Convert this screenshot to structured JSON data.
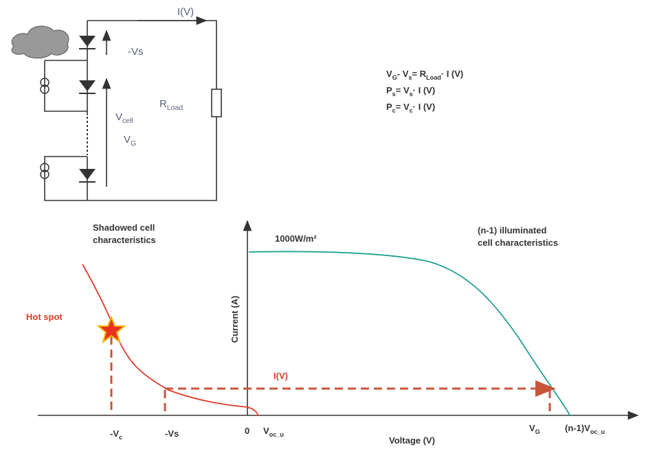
{
  "circuit": {
    "current_label": "I(V)",
    "shadow_voltage": "-Vs",
    "cell_voltage": [
      "V",
      {
        "sub": "cell"
      }
    ],
    "string_voltage": [
      "V",
      {
        "sub": "G"
      }
    ],
    "load": [
      "R",
      {
        "sub": "Load"
      }
    ]
  },
  "equations": [
    [
      "V",
      {
        "sub": "G"
      },
      "- V",
      {
        "sub": "s"
      },
      "= R",
      {
        "sub": "Load"
      },
      "· I (V)"
    ],
    [
      "P",
      {
        "sub": "s"
      },
      "= V",
      {
        "sub": "s"
      },
      "· I (V)"
    ],
    [
      "P",
      {
        "sub": "c"
      },
      "= V",
      {
        "sub": "c"
      },
      "· I (V)"
    ]
  ],
  "graph": {
    "shadowed_label": [
      "Shadowed cell",
      "characteristics"
    ],
    "illuminated_label": [
      "(n-1) illuminated",
      "cell characteristics"
    ],
    "irradiance": "1000W/m²",
    "hot_spot": "Hot spot",
    "current_label": "I(V)",
    "y_axis": "Current (A)",
    "x_axis": "Voltage (V)",
    "x_labels": [
      [
        "-V",
        {
          "sub": "c"
        }
      ],
      "-Vs",
      "0",
      [
        "V",
        {
          "sub": "oc_u"
        }
      ],
      [
        "V",
        {
          "sub": "G"
        }
      ],
      [
        "(n-1)V",
        {
          "sub": "oc_u"
        }
      ]
    ]
  }
}
